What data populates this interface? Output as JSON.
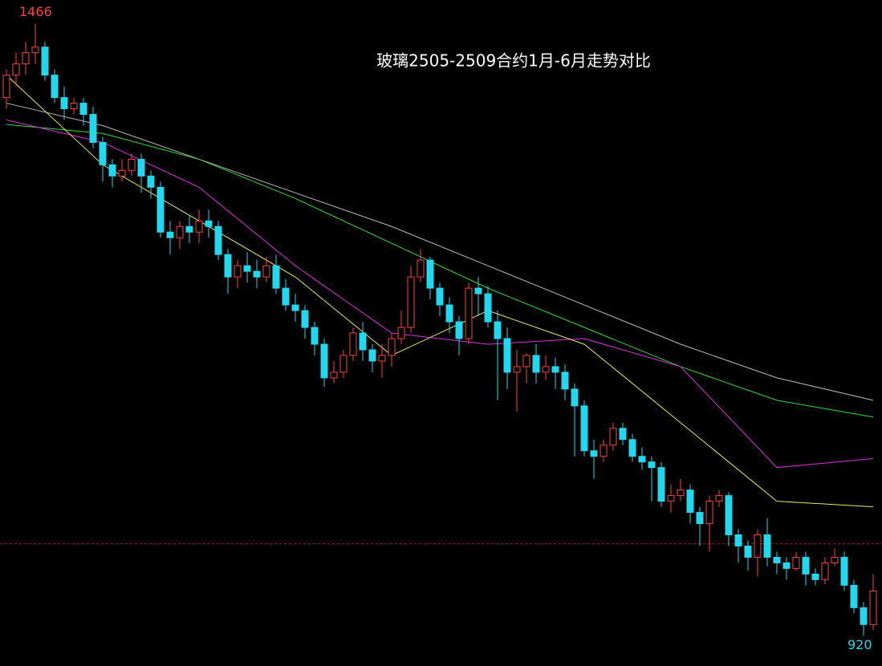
{
  "chart_data": {
    "type": "candlestick",
    "title": "玻璃2505-2509合约1月-6月走势对比",
    "open": [
      1400,
      1420,
      1430,
      1440,
      1445,
      1420,
      1400,
      1390,
      1395,
      1385,
      1360,
      1340,
      1330,
      1335,
      1345,
      1330,
      1320,
      1280,
      1275,
      1285,
      1280,
      1290,
      1285,
      1260,
      1240,
      1250,
      1245,
      1240,
      1250,
      1230,
      1215,
      1210,
      1195,
      1180,
      1150,
      1155,
      1170,
      1190,
      1175,
      1165,
      1170,
      1185,
      1195,
      1240,
      1255,
      1230,
      1215,
      1200,
      1185,
      1230,
      1225,
      1200,
      1185,
      1155,
      1160,
      1170,
      1155,
      1160,
      1155,
      1140,
      1125,
      1085,
      1080,
      1090,
      1105,
      1095,
      1080,
      1075,
      1070,
      1040,
      1045,
      1050,
      1030,
      1020,
      1040,
      1045,
      1010,
      1000,
      990,
      1010,
      990,
      985,
      980,
      990,
      975,
      970,
      985,
      990,
      965,
      945,
      930
    ],
    "high": [
      1425,
      1440,
      1450,
      1466,
      1450,
      1425,
      1410,
      1400,
      1400,
      1392,
      1365,
      1345,
      1345,
      1350,
      1350,
      1335,
      1325,
      1290,
      1290,
      1295,
      1300,
      1300,
      1290,
      1265,
      1255,
      1262,
      1255,
      1258,
      1260,
      1238,
      1225,
      1215,
      1200,
      1185,
      1165,
      1175,
      1195,
      1200,
      1180,
      1180,
      1190,
      1210,
      1250,
      1265,
      1258,
      1235,
      1222,
      1205,
      1235,
      1240,
      1232,
      1210,
      1195,
      1175,
      1172,
      1180,
      1170,
      1168,
      1162,
      1145,
      1130,
      1095,
      1095,
      1110,
      1110,
      1100,
      1088,
      1080,
      1075,
      1055,
      1060,
      1055,
      1035,
      1045,
      1050,
      1048,
      1015,
      1005,
      1015,
      1025,
      995,
      990,
      995,
      995,
      980,
      990,
      998,
      995,
      970,
      950,
      975
    ],
    "low": [
      1390,
      1410,
      1420,
      1430,
      1415,
      1395,
      1380,
      1385,
      1375,
      1355,
      1325,
      1320,
      1325,
      1330,
      1315,
      1310,
      1275,
      1260,
      1265,
      1270,
      1270,
      1275,
      1255,
      1225,
      1230,
      1235,
      1230,
      1235,
      1225,
      1210,
      1200,
      1185,
      1170,
      1142,
      1145,
      1150,
      1165,
      1165,
      1155,
      1150,
      1160,
      1180,
      1190,
      1235,
      1220,
      1205,
      1190,
      1170,
      1180,
      1205,
      1195,
      1130,
      1140,
      1120,
      1145,
      1145,
      1148,
      1140,
      1130,
      1080,
      1080,
      1060,
      1075,
      1085,
      1090,
      1075,
      1068,
      1040,
      1035,
      1030,
      1040,
      1020,
      1000,
      995,
      1035,
      1000,
      985,
      978,
      973,
      982,
      975,
      970,
      978,
      965,
      965,
      966,
      982,
      960,
      940,
      920,
      925
    ],
    "close": [
      1420,
      1430,
      1440,
      1445,
      1420,
      1400,
      1390,
      1395,
      1385,
      1360,
      1340,
      1330,
      1335,
      1345,
      1330,
      1320,
      1280,
      1275,
      1285,
      1280,
      1290,
      1285,
      1260,
      1240,
      1250,
      1245,
      1240,
      1250,
      1230,
      1215,
      1210,
      1195,
      1180,
      1150,
      1155,
      1170,
      1190,
      1175,
      1165,
      1170,
      1185,
      1195,
      1240,
      1255,
      1230,
      1215,
      1200,
      1185,
      1230,
      1225,
      1200,
      1185,
      1155,
      1160,
      1170,
      1155,
      1160,
      1155,
      1140,
      1125,
      1085,
      1080,
      1090,
      1105,
      1095,
      1080,
      1075,
      1070,
      1040,
      1045,
      1050,
      1030,
      1020,
      1040,
      1045,
      1010,
      1000,
      990,
      1010,
      990,
      985,
      980,
      990,
      975,
      970,
      985,
      990,
      965,
      945,
      930,
      960
    ],
    "up_color": "#ff4040",
    "down_color": "#22d8ee",
    "ylim": [
      893,
      1487
    ],
    "reference_line": {
      "value": 1002,
      "color": "#b02020"
    },
    "lines": [
      {
        "color": "#b8b8b8",
        "x": [
          0,
          10,
          20,
          30,
          40,
          50,
          60,
          70,
          80,
          90
        ],
        "values": [
          1395,
          1375,
          1345,
          1315,
          1285,
          1250,
          1215,
          1180,
          1150,
          1130
        ]
      },
      {
        "color": "#33dd33",
        "x": [
          0,
          10,
          20,
          30,
          40,
          50,
          60,
          70,
          80,
          90
        ],
        "values": [
          1376,
          1368,
          1345,
          1310,
          1270,
          1230,
          1195,
          1160,
          1130,
          1115
        ]
      },
      {
        "color": "#e030e0",
        "x": [
          0,
          10,
          20,
          30,
          40,
          50,
          60,
          70,
          80,
          90
        ],
        "values": [
          1380,
          1360,
          1320,
          1250,
          1190,
          1180,
          1185,
          1160,
          1070,
          1078
        ]
      },
      {
        "color": "#e8e860",
        "x": [
          0,
          10,
          20,
          30,
          40,
          50,
          60,
          70,
          80,
          90
        ],
        "values": [
          1420,
          1340,
          1290,
          1240,
          1170,
          1210,
          1180,
          1110,
          1040,
          1035
        ]
      }
    ]
  }
}
